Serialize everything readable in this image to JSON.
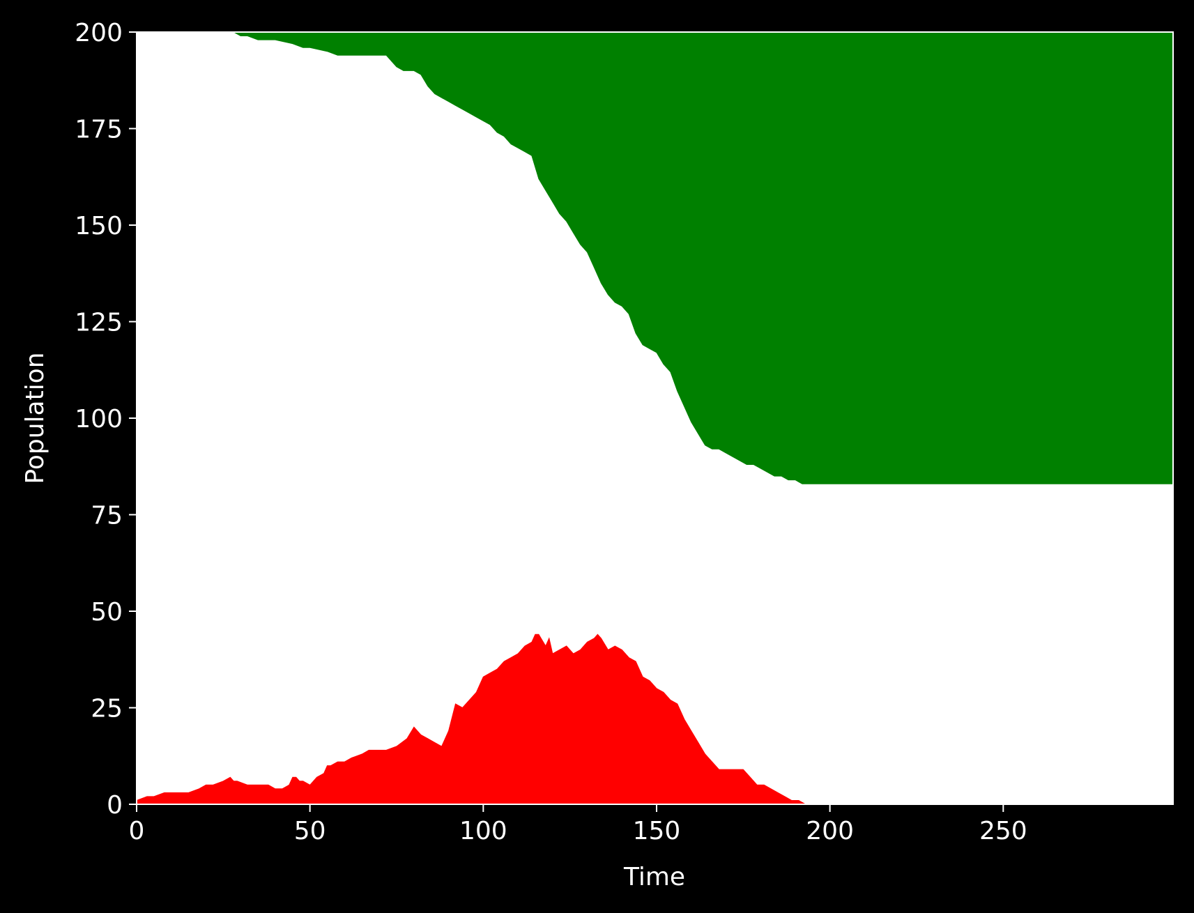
{
  "chart_data": {
    "type": "area",
    "title": "",
    "xlabel": "Time",
    "ylabel": "Population",
    "xlim": [
      0,
      299
    ],
    "ylim": [
      0,
      200
    ],
    "xticks": [
      "0",
      "50",
      "100",
      "150",
      "200",
      "250"
    ],
    "yticks": [
      "0",
      "25",
      "50",
      "75",
      "100",
      "125",
      "150",
      "175",
      "200"
    ],
    "grid": false,
    "legend": "none",
    "colors": {
      "background": "#000000",
      "axes_face": "#ffffff",
      "axes_edge": "#ffffff",
      "text": "#ffffff",
      "series_1": "#ff0000",
      "series_2": "#008000"
    },
    "series": [
      {
        "color": "#ff0000",
        "fill": "from 0 up to the value",
        "x": [
          0,
          3,
          5,
          8,
          10,
          15,
          18,
          20,
          22,
          25,
          27,
          28,
          29,
          32,
          35,
          38,
          40,
          42,
          44,
          45,
          46,
          47,
          48,
          50,
          52,
          54,
          55,
          56,
          58,
          60,
          62,
          65,
          67,
          70,
          72,
          75,
          78,
          80,
          82,
          84,
          86,
          88,
          90,
          92,
          94,
          96,
          98,
          100,
          102,
          104,
          106,
          108,
          110,
          112,
          114,
          115,
          116,
          118,
          119,
          120,
          122,
          124,
          126,
          128,
          130,
          132,
          133,
          134,
          136,
          138,
          140,
          142,
          144,
          146,
          148,
          150,
          152,
          154,
          156,
          158,
          160,
          162,
          164,
          166,
          168,
          170,
          172,
          175,
          177,
          179,
          181,
          183,
          185,
          187,
          189,
          191,
          193,
          195,
          200,
          250,
          299
        ],
        "values": [
          1,
          2,
          2,
          3,
          3,
          3,
          4,
          5,
          5,
          6,
          7,
          6,
          6,
          5,
          5,
          5,
          4,
          4,
          5,
          7,
          7,
          6,
          6,
          5,
          7,
          8,
          10,
          10,
          11,
          11,
          12,
          13,
          14,
          14,
          14,
          15,
          17,
          20,
          18,
          17,
          16,
          15,
          19,
          26,
          25,
          27,
          29,
          33,
          34,
          35,
          37,
          38,
          39,
          41,
          42,
          44,
          44,
          41,
          43,
          39,
          40,
          41,
          39,
          40,
          42,
          43,
          44,
          43,
          40,
          41,
          40,
          38,
          37,
          33,
          32,
          30,
          29,
          27,
          26,
          22,
          19,
          16,
          13,
          11,
          9,
          9,
          9,
          9,
          7,
          5,
          5,
          4,
          3,
          2,
          1,
          1,
          0,
          0,
          0,
          0,
          0
        ]
      },
      {
        "color": "#008000",
        "fill": "from the value up to 200",
        "x": [
          0,
          28,
          30,
          32,
          35,
          38,
          40,
          45,
          48,
          50,
          55,
          58,
          60,
          65,
          70,
          72,
          74,
          75,
          77,
          80,
          82,
          84,
          85,
          86,
          88,
          90,
          92,
          94,
          96,
          98,
          100,
          102,
          104,
          106,
          108,
          110,
          112,
          114,
          116,
          118,
          120,
          122,
          124,
          126,
          128,
          130,
          132,
          134,
          136,
          138,
          140,
          142,
          144,
          146,
          148,
          150,
          152,
          154,
          156,
          158,
          160,
          162,
          164,
          166,
          168,
          170,
          172,
          174,
          176,
          178,
          180,
          182,
          184,
          186,
          188,
          190,
          192,
          194,
          200,
          250,
          299
        ],
        "values": [
          200,
          200,
          199,
          199,
          198,
          198,
          198,
          197,
          196,
          196,
          195,
          194,
          194,
          194,
          194,
          194,
          192,
          191,
          190,
          190,
          189,
          186,
          185,
          184,
          183,
          182,
          181,
          180,
          179,
          178,
          177,
          176,
          174,
          173,
          171,
          170,
          169,
          168,
          162,
          159,
          156,
          153,
          151,
          148,
          145,
          143,
          139,
          135,
          132,
          130,
          129,
          127,
          122,
          119,
          118,
          117,
          114,
          112,
          107,
          103,
          99,
          96,
          93,
          92,
          92,
          91,
          90,
          89,
          88,
          88,
          87,
          86,
          85,
          85,
          84,
          84,
          83,
          83,
          83,
          83,
          83
        ]
      }
    ]
  }
}
